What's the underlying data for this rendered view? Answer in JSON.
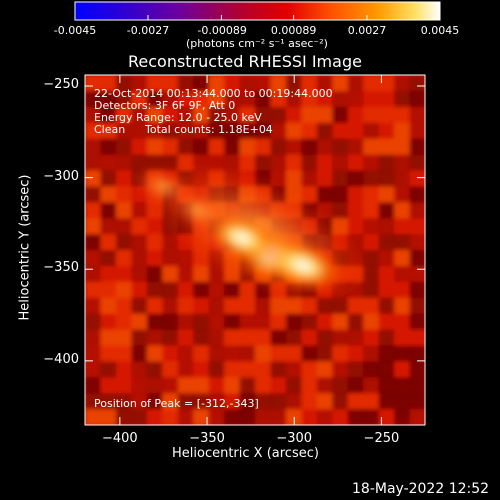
{
  "window": {
    "timestamp": "18-May-2022 12:52"
  },
  "colorbar": {
    "tick_labels": [
      "-0.0045",
      "-0.0027",
      "-0.00089",
      "0.00089",
      "0.0027",
      "0.0045"
    ],
    "ticks": [
      -0.0045,
      -0.0027,
      -0.00089,
      0.00089,
      0.0027,
      0.0045
    ],
    "range": [
      -0.0045,
      0.0045
    ],
    "units_label": "(photons cm⁻² s⁻¹ asec⁻²)",
    "colormap": [
      "#0000ff",
      "#4000c0",
      "#800080",
      "#c00000",
      "#ff4000",
      "#ff8000",
      "#ffd000",
      "#ffffff"
    ]
  },
  "chart_data": {
    "type": "heatmap",
    "title": "Reconstructed RHESSI Image",
    "xlabel": "Heliocentric X (arcsec)",
    "ylabel": "Heliocentric Y (arcsec)",
    "xlim": [
      -420,
      -225
    ],
    "ylim": [
      -435,
      -244
    ],
    "x_ticks": [
      -400,
      -350,
      -300,
      -250
    ],
    "y_ticks": [
      -250,
      -300,
      -350,
      -400
    ],
    "annotations": {
      "time_range": "22-Oct-2014 00:13:44.000 to 00:19:44.000",
      "detectors": "Detectors: 3F 6F 9F, Att 0",
      "energy_range": "Energy Range: 12.0 - 25.0 keV",
      "clean": "Clean",
      "total_counts": "Total counts: 1.18E+04",
      "peak_position": "Position of Peak = [-312,-343]"
    },
    "peak": {
      "x": -312,
      "y": -343
    },
    "sources": [
      {
        "x": -312,
        "y": -343,
        "intensity": 1.0
      },
      {
        "x": -295,
        "y": -348,
        "intensity": 0.85
      },
      {
        "x": -330,
        "y": -333,
        "intensity": 0.7
      },
      {
        "x": -375,
        "y": -305,
        "intensity": 0.45
      },
      {
        "x": -355,
        "y": -318,
        "intensity": 0.42
      }
    ]
  }
}
